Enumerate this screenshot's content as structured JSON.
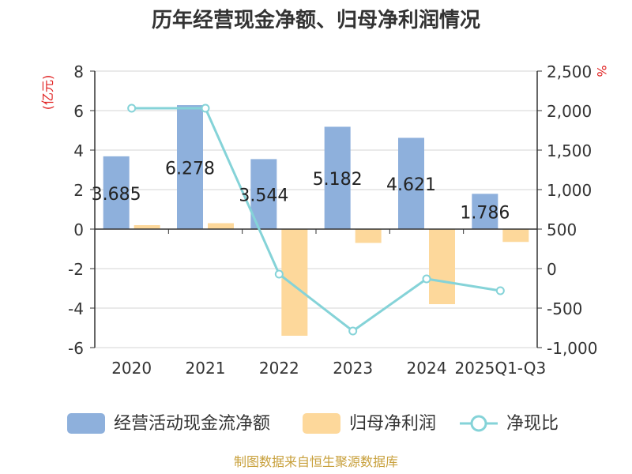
{
  "chart_data": {
    "type": "bar",
    "title": "历年经营现金净额、归母净利润情况",
    "categories": [
      "2020",
      "2021",
      "2022",
      "2023",
      "2024",
      "2025Q1-Q3"
    ],
    "series": [
      {
        "name": "经营活动现金流净额",
        "kind": "bar",
        "axis": "left",
        "color": "#8eb0dc",
        "values": [
          3.685,
          6.278,
          3.544,
          5.182,
          4.621,
          1.786
        ],
        "labels": [
          "3.685",
          "6.278",
          "3.544",
          "5.182",
          "4.621",
          "1.786"
        ]
      },
      {
        "name": "归母净利润",
        "kind": "bar",
        "axis": "left",
        "color": "#fdd89b",
        "values": [
          0.2,
          0.3,
          -5.4,
          -0.7,
          -3.8,
          -0.65
        ]
      },
      {
        "name": "净现比",
        "kind": "line",
        "axis": "right",
        "color": "#85d3d8",
        "values": [
          2030,
          2030,
          -70,
          -790,
          -130,
          -280
        ]
      }
    ],
    "left_axis": {
      "unit": "(亿元)",
      "ylim": [
        -6,
        8
      ],
      "ticks": [
        8,
        6,
        4,
        2,
        0,
        -2,
        -4,
        -6
      ],
      "tick_labels": [
        "8",
        "6",
        "4",
        "2",
        "0",
        "-2",
        "-4",
        "-6"
      ]
    },
    "right_axis": {
      "unit": "%",
      "ylim": [
        -1000,
        2500
      ],
      "ticks": [
        2500,
        2000,
        1500,
        1000,
        500,
        0,
        -500,
        -1000
      ],
      "tick_labels": [
        "2,500",
        "2,000",
        "1,500",
        "1,000",
        "500",
        "0",
        "-500",
        "-1,000"
      ]
    },
    "grid": true,
    "legend": "bottom-center"
  },
  "source": "制图数据来自恒生聚源数据库",
  "colors": {
    "axis": "#333333",
    "grid": "#d6d6d6",
    "unit": "#e02020",
    "source": "#c8a03c"
  }
}
